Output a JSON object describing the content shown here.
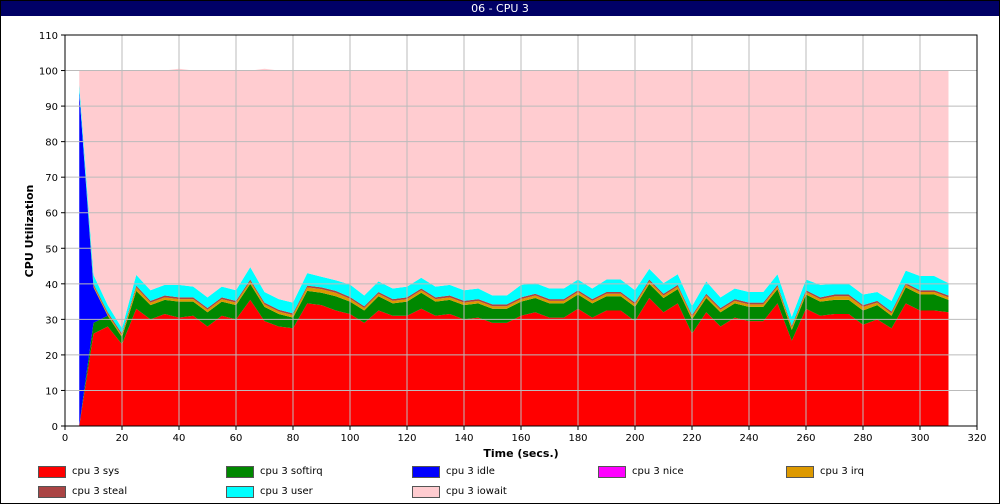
{
  "window": {
    "title": "06 - CPU 3"
  },
  "chart_data": {
    "type": "area",
    "stacked": true,
    "title": "",
    "xlabel": "Time (secs.)",
    "ylabel": "CPU Utilization",
    "xlim": [
      0,
      320
    ],
    "ylim": [
      0,
      110
    ],
    "xticks": [
      0,
      20,
      40,
      60,
      80,
      100,
      120,
      140,
      160,
      180,
      200,
      220,
      240,
      260,
      280,
      300,
      320
    ],
    "yticks": [
      0,
      10,
      20,
      30,
      40,
      50,
      60,
      70,
      80,
      90,
      100,
      110
    ],
    "grid": true,
    "legend_position": "bottom",
    "x": [
      5,
      10,
      15,
      20,
      25,
      30,
      35,
      40,
      45,
      50,
      55,
      60,
      65,
      70,
      75,
      80,
      85,
      90,
      95,
      100,
      105,
      110,
      115,
      120,
      125,
      130,
      135,
      140,
      145,
      150,
      155,
      160,
      165,
      170,
      175,
      180,
      185,
      190,
      195,
      200,
      205,
      210,
      215,
      220,
      225,
      230,
      235,
      240,
      245,
      250,
      255,
      260,
      265,
      270,
      275,
      280,
      285,
      290,
      295,
      300,
      305,
      310
    ],
    "series": [
      {
        "name": "cpu 3 sys",
        "color": "#ff0000",
        "values": [
          0,
          26,
          28,
          23,
          33,
          30,
          31.5,
          30.5,
          31,
          28,
          31,
          30,
          35.5,
          29.5,
          28,
          27.5,
          34.5,
          34,
          32.5,
          31.5,
          29,
          32.5,
          31,
          31,
          33,
          31,
          31.5,
          30,
          30.5,
          29,
          29,
          31,
          32,
          30.5,
          30.5,
          33,
          30.5,
          32.5,
          32.5,
          29.5,
          36,
          32,
          34.5,
          26,
          32,
          28,
          30.5,
          29.5,
          29.5,
          34.5,
          24,
          33,
          31,
          31.5,
          31.5,
          28.5,
          30,
          27.5,
          34.5,
          32.5,
          32.5,
          32
        ]
      },
      {
        "name": "cpu 3 softirq",
        "color": "#008800",
        "values": [
          0,
          3,
          3,
          2,
          5,
          4,
          4,
          4.5,
          4,
          4,
          4,
          4,
          4.5,
          4,
          3.5,
          3,
          3.5,
          3.5,
          4,
          3.5,
          3.5,
          4,
          3.5,
          4,
          4.5,
          4,
          4,
          4,
          4,
          4,
          4,
          4,
          4,
          4,
          4,
          4,
          4,
          4,
          4,
          4,
          4,
          4,
          4,
          4,
          4,
          4,
          4,
          4,
          4,
          4,
          3,
          4,
          4,
          4,
          4,
          4,
          4,
          3.5,
          4.5,
          4.5,
          4.5,
          3.5
        ]
      },
      {
        "name": "cpu 3 idle",
        "color": "#0000ff",
        "values": [
          94,
          10,
          0,
          0,
          0,
          0,
          0,
          0,
          0,
          0,
          0,
          0,
          0,
          0,
          0,
          0,
          0,
          0,
          0,
          0,
          0,
          0,
          0,
          0,
          0,
          0,
          0,
          0,
          0,
          0,
          0,
          0,
          0,
          0,
          0,
          0,
          0,
          0,
          0,
          0,
          0,
          0,
          0,
          0,
          0,
          0,
          0,
          0,
          0,
          0,
          0,
          0,
          0,
          0,
          0,
          0,
          0,
          0,
          0,
          0,
          0,
          0
        ]
      },
      {
        "name": "cpu 3 nice",
        "color": "#ff00ff",
        "values": [
          0,
          0,
          0,
          0,
          0,
          0,
          0,
          0,
          0,
          0,
          0,
          0,
          0,
          0,
          0,
          0,
          0,
          0,
          0,
          0,
          0,
          0,
          0,
          0,
          0,
          0,
          0,
          0,
          0,
          0,
          0,
          0,
          0,
          0,
          0,
          0,
          0,
          0,
          0,
          0,
          0,
          0,
          0,
          0,
          0,
          0,
          0,
          0,
          0,
          0,
          0,
          0,
          0,
          0,
          0,
          0,
          0,
          0,
          0,
          0,
          0,
          0
        ]
      },
      {
        "name": "cpu 3 irq",
        "color": "#dd9900",
        "values": [
          0,
          0.5,
          0.5,
          0.5,
          1,
          0.7,
          0.7,
          0.7,
          0.7,
          0.7,
          0.7,
          0.7,
          0.7,
          0.7,
          0.7,
          0.7,
          1,
          1,
          1,
          0.8,
          0.7,
          0.7,
          0.7,
          0.7,
          0.7,
          0.7,
          0.7,
          0.7,
          0.7,
          0.7,
          0.7,
          0.7,
          0.7,
          0.7,
          0.7,
          0.7,
          0.7,
          0.7,
          0.7,
          0.7,
          0.7,
          0.7,
          0.7,
          0.7,
          0.7,
          0.7,
          0.7,
          0.7,
          0.7,
          0.7,
          0.7,
          0.7,
          0.7,
          1,
          1,
          1,
          0.7,
          0.7,
          0.7,
          0.7,
          0.7,
          0.7
        ]
      },
      {
        "name": "cpu 3 steal",
        "color": "#aa4444",
        "values": [
          0,
          0.5,
          0.5,
          0.5,
          0.5,
          0.5,
          0.5,
          0.5,
          0.5,
          0.5,
          0.5,
          0.5,
          0.5,
          0.5,
          0.5,
          0.5,
          0.5,
          0.5,
          0.5,
          0.5,
          0.5,
          0.5,
          0.5,
          0.5,
          0.5,
          0.5,
          0.5,
          0.5,
          0.5,
          0.5,
          0.5,
          0.5,
          0.5,
          0.5,
          0.5,
          0.5,
          0.5,
          0.5,
          0.5,
          0.5,
          0.5,
          0.5,
          0.5,
          0.5,
          0.5,
          0.5,
          0.5,
          0.5,
          0.5,
          0.5,
          0.5,
          0.5,
          0.5,
          0.5,
          0.5,
          0.5,
          0.5,
          0.5,
          0.5,
          0.5,
          0.5,
          0.5
        ]
      },
      {
        "name": "cpu 3 user",
        "color": "#00ffff",
        "values": [
          2,
          2.5,
          2,
          1.5,
          3,
          3,
          3,
          3.5,
          3,
          3,
          3,
          3,
          3.5,
          3,
          3,
          3,
          3.5,
          3,
          3,
          3.5,
          3,
          3,
          3,
          3,
          3,
          3,
          3,
          3,
          3,
          2.5,
          2.5,
          3.5,
          3,
          3,
          3,
          3,
          3,
          3.5,
          3.5,
          3.5,
          3,
          3,
          3,
          2.5,
          3.5,
          3,
          3,
          3,
          3,
          3,
          2.5,
          3,
          3.5,
          3,
          3,
          3,
          2.5,
          3,
          3.5,
          4,
          4,
          3.5
        ]
      },
      {
        "name": "cpu 3 iowait",
        "color": "#ffccd0",
        "values": [
          4,
          57.5,
          66,
          72.5,
          57.5,
          61.8,
          60.3,
          60.8,
          60.8,
          63.8,
          60.8,
          61.8,
          55.3,
          62.8,
          64.3,
          65.3,
          57,
          58,
          59,
          60.2,
          63.3,
          59.3,
          61.3,
          60.8,
          58.3,
          60.8,
          60.3,
          61.8,
          61.3,
          63.3,
          63.3,
          60.3,
          59.8,
          61.3,
          61.3,
          58.8,
          61.3,
          58.8,
          58.8,
          61.8,
          55.8,
          59.8,
          57.3,
          66.3,
          59.3,
          63.8,
          61.3,
          62.3,
          62.3,
          57.3,
          69.3,
          58.8,
          60.3,
          60,
          60,
          63,
          62.3,
          64.8,
          56.3,
          57.8,
          57.8,
          59.8
        ]
      }
    ]
  }
}
